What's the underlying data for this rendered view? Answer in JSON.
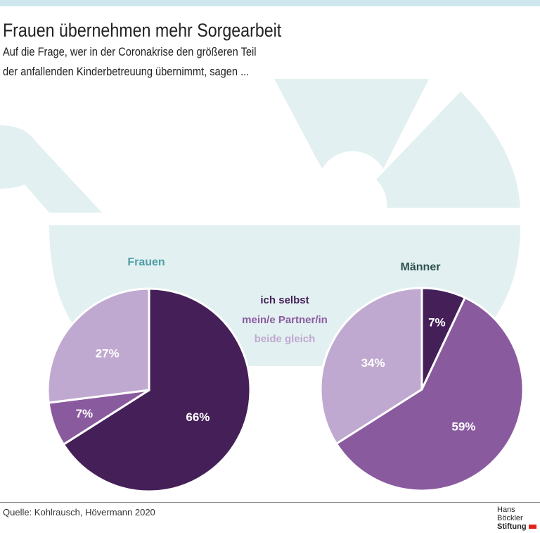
{
  "header": {
    "title": "Frauen übernehmen mehr Sorgearbeit",
    "subtitle_line1": "Auf die Frage, wer in der Coronakrise den größeren Teil",
    "subtitle_line2": "der anfallenden Kinderbetreuung übernimmt, sagen ..."
  },
  "chart_data": [
    {
      "type": "pie",
      "title": "Frauen",
      "categories": [
        "ich selbst",
        "mein/e Partner/in",
        "beide gleich"
      ],
      "values": [
        66,
        7,
        27
      ],
      "labels": [
        "66%",
        "7%",
        "27%"
      ]
    },
    {
      "type": "pie",
      "title": "Männer",
      "categories": [
        "ich selbst",
        "mein/e Partner/in",
        "beide gleich"
      ],
      "values": [
        7,
        59,
        34
      ],
      "labels": [
        "7%",
        "59%",
        "34%"
      ]
    }
  ],
  "legend": [
    "ich selbst",
    "mein/e Partner/in",
    "beide gleich"
  ],
  "colors": {
    "ich selbst": "#452058",
    "mein/e Partner/in": "#8a5a9e",
    "beide gleich": "#c0a9d0",
    "background_shape": "#e2f0f1",
    "frauen_title": "#4f9ea6",
    "maenner_title": "#2d4f4f"
  },
  "footer": {
    "source": "Quelle: Kohlrausch, Hövermann 2020",
    "logo_line1": "Hans Böckler",
    "logo_line2": "Stiftung"
  }
}
